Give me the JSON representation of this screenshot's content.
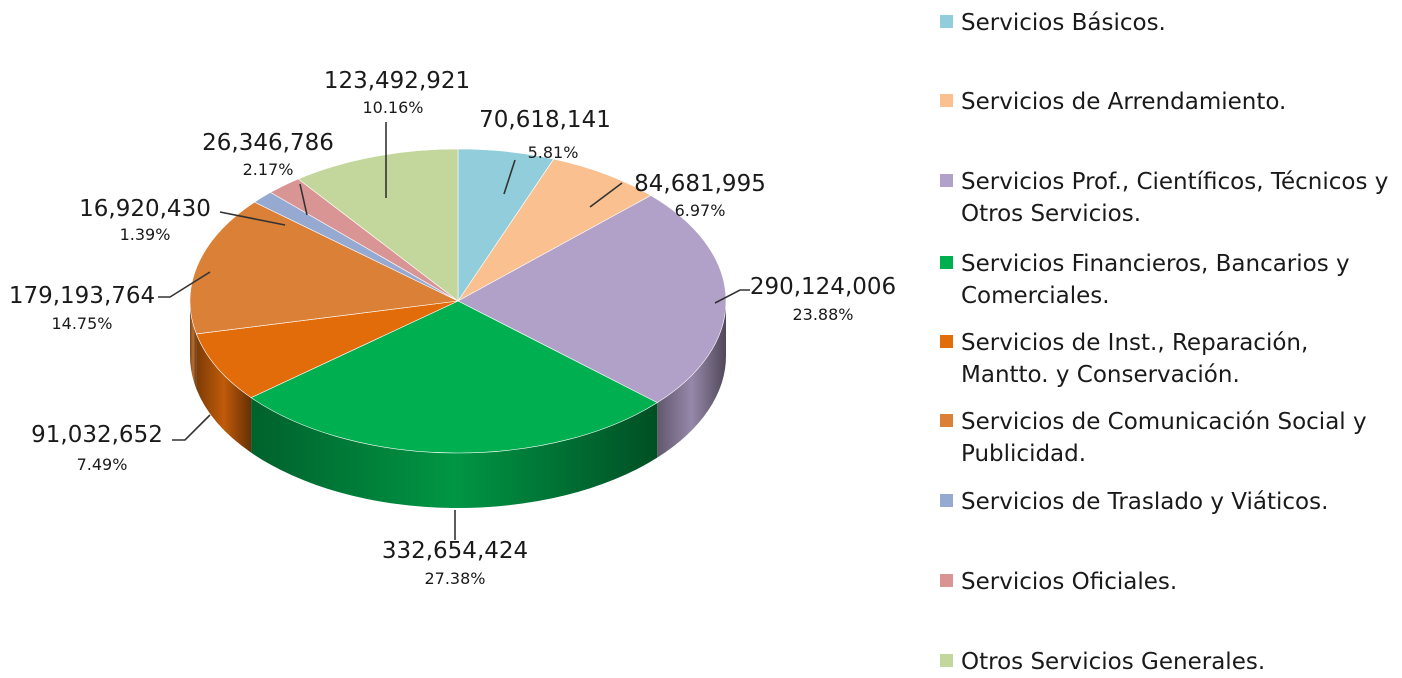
{
  "chart_data": {
    "type": "pie",
    "title": "",
    "slices": [
      {
        "label": "Servicios Básicos.",
        "value": 70618141,
        "value_text": "70,618,141",
        "percent_text": "5.81%",
        "color": "#92CDDC"
      },
      {
        "label": "Servicios de Arrendamiento.",
        "value": 84681995,
        "value_text": "84,681,995",
        "percent_text": "6.97%",
        "color": "#FAC090"
      },
      {
        "label": "Servicios Prof., Científicos, Técnicos y Otros Servicios.",
        "value": 290124006,
        "value_text": "290,124,006",
        "percent_text": "23.88%",
        "color": "#B1A0C7"
      },
      {
        "label": "Servicios Financieros, Bancarios y Comerciales.",
        "value": 332654424,
        "value_text": "332,654,424",
        "percent_text": "27.38%",
        "color": "#00B050"
      },
      {
        "label": "Servicios de Inst., Reparación, Mantto. y Conservación.",
        "value": 91032652,
        "value_text": "91,032,652",
        "percent_text": "7.49%",
        "color": "#E26B0A"
      },
      {
        "label": "Servicios de Comunicación Social y Publicidad.",
        "value": 179193764,
        "value_text": "179,193,764",
        "percent_text": "14.75%",
        "color": "#DA8137"
      },
      {
        "label": "Servicios de Traslado y Viáticos.",
        "value": 16920430,
        "value_text": "16,920,430",
        "percent_text": "1.39%",
        "color": "#95A9D1"
      },
      {
        "label": "Servicios Oficiales.",
        "value": 26346786,
        "value_text": "26,346,786",
        "percent_text": "2.17%",
        "color": "#D99594"
      },
      {
        "label": "Otros Servicios Generales.",
        "value": 123492921,
        "value_text": "123,492,921",
        "percent_text": "10.16%",
        "color": "#C3D69B"
      }
    ],
    "legend_position": "right",
    "three_d": true
  }
}
